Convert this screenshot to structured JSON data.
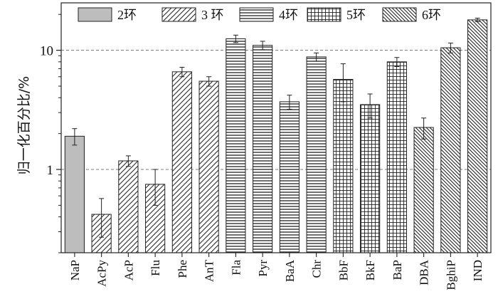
{
  "chart_data": {
    "type": "bar",
    "title": "",
    "xlabel": "",
    "ylabel": "归一化百分比/%",
    "yscale": "log",
    "ylim": [
      0.2,
      25
    ],
    "yticks": [
      1,
      10
    ],
    "ytick_labels": [
      "1",
      "10"
    ],
    "grid": {
      "y_major": "dashed",
      "x": false
    },
    "legend": {
      "placement": "top",
      "entries": [
        {
          "label": "2环",
          "ring": "2",
          "pattern": "solid-gray"
        },
        {
          "label": "3 环",
          "ring": "3",
          "pattern": "diagonal"
        },
        {
          "label": "4环",
          "ring": "4",
          "pattern": "horizontal"
        },
        {
          "label": "5环",
          "ring": "5",
          "pattern": "grid"
        },
        {
          "label": "6环",
          "ring": "6",
          "pattern": "dense-diagonal"
        }
      ]
    },
    "categories": [
      "NaP",
      "AcPy",
      "AcP",
      "Flu",
      "Phe",
      "AnT",
      "Fla",
      "Pyr",
      "BaA",
      "Chr",
      "BbF",
      "BkF",
      "BaP",
      "DBA",
      "BghiP",
      "IND"
    ],
    "values": [
      1.9,
      0.42,
      1.18,
      0.75,
      6.6,
      5.5,
      12.5,
      11.0,
      3.7,
      8.8,
      5.7,
      3.5,
      8.0,
      2.25,
      10.5,
      18.0
    ],
    "errors": [
      0.3,
      0.15,
      0.12,
      0.25,
      0.6,
      0.5,
      0.9,
      0.9,
      0.5,
      0.7,
      2.0,
      0.8,
      0.7,
      0.45,
      1.0,
      0.6
    ],
    "rings": [
      "2",
      "3",
      "3",
      "3",
      "3",
      "3",
      "4",
      "4",
      "4",
      "4",
      "5",
      "5",
      "5",
      "6",
      "6",
      "6"
    ]
  },
  "colors": {
    "bar_fill": "#bdbdbd",
    "pattern_fill": "#ffffff",
    "stroke": "#222222",
    "grid": "#555555"
  }
}
